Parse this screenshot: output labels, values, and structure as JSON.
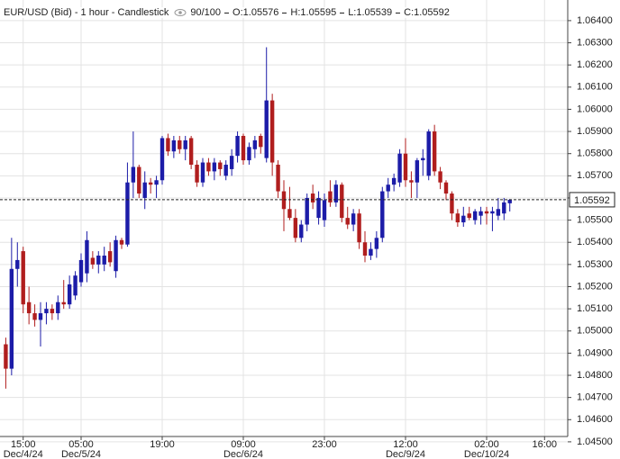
{
  "chart_data": {
    "type": "candlestick",
    "title": "EUR/USD (Bid) - 1 hour - Candlestick",
    "bar_count": "90/100",
    "ohlc_readout": {
      "values": [
        1.05576,
        1.05595,
        1.05539,
        1.05592
      ],
      "value_labels": [
        "O:1.05576",
        "H:1.05595",
        "L:1.05539",
        "C:1.05592"
      ]
    },
    "last_price": 1.05592,
    "up_color": "#1c1ca8",
    "down_color": "#b01e1e",
    "grid": true,
    "ylim": [
      1.04524,
      1.06493
    ],
    "xlim": [
      -1,
      97
    ],
    "yticks": [
      {
        "value": 1.045,
        "label": "1.04500"
      },
      {
        "value": 1.046,
        "label": "1.04600"
      },
      {
        "value": 1.047,
        "label": "1.04700"
      },
      {
        "value": 1.048,
        "label": "1.04800"
      },
      {
        "value": 1.049,
        "label": "1.04900"
      },
      {
        "value": 1.05,
        "label": "1.05000"
      },
      {
        "value": 1.051,
        "label": "1.05100"
      },
      {
        "value": 1.052,
        "label": "1.05200"
      },
      {
        "value": 1.053,
        "label": "1.05300"
      },
      {
        "value": 1.054,
        "label": "1.05400"
      },
      {
        "value": 1.055,
        "label": "1.05500"
      },
      {
        "value": 1.056,
        "label": "1.05600"
      },
      {
        "value": 1.057,
        "label": "1.05700"
      },
      {
        "value": 1.058,
        "label": "1.05800"
      },
      {
        "value": 1.059,
        "label": "1.05900"
      },
      {
        "value": 1.06,
        "label": "1.06000"
      },
      {
        "value": 1.061,
        "label": "1.06100"
      },
      {
        "value": 1.062,
        "label": "1.06200"
      },
      {
        "value": 1.063,
        "label": "1.06300"
      },
      {
        "value": 1.064,
        "label": "1.06400"
      }
    ],
    "xticks": [
      {
        "value": 3,
        "label": "15:00"
      },
      {
        "value": 13,
        "label": "05:00"
      },
      {
        "value": 27,
        "label": "19:00"
      },
      {
        "value": 41,
        "label": "09:00"
      },
      {
        "value": 55,
        "label": "23:00"
      },
      {
        "value": 69,
        "label": "12:00"
      },
      {
        "value": 83,
        "label": "02:00"
      },
      {
        "value": 93,
        "label": "16:00"
      }
    ],
    "xdates": [
      {
        "value": 3,
        "label": "Dec/4/24"
      },
      {
        "value": 13,
        "label": "Dec/5/24"
      },
      {
        "value": 41,
        "label": "Dec/6/24"
      },
      {
        "value": 69,
        "label": "Dec/9/24"
      },
      {
        "value": 83,
        "label": "Dec/10/24"
      }
    ],
    "open": [
      1.0494,
      1.0483,
      1.0528,
      1.0536,
      1.0513,
      1.0508,
      1.0505,
      1.0508,
      1.051,
      1.0508,
      1.0513,
      1.0512,
      1.0516,
      1.0522,
      1.0526,
      1.0533,
      1.053,
      1.053,
      1.0536,
      1.0527,
      1.0541,
      1.0539,
      1.0567,
      1.0574,
      1.056,
      1.0567,
      1.0566,
      1.0568,
      1.0587,
      1.0581,
      1.0586,
      1.0582,
      1.0587,
      1.0575,
      1.0567,
      1.0576,
      1.0572,
      1.0576,
      1.057,
      1.0573,
      1.0579,
      1.0588,
      1.0577,
      1.0582,
      1.0588,
      1.0578,
      1.0604,
      1.0575,
      1.0563,
      1.0555,
      1.0551,
      1.0542,
      1.0548,
      1.0562,
      1.0551,
      1.055,
      1.0563,
      1.0558,
      1.0566,
      1.0551,
      1.0548,
      1.0553,
      1.054,
      1.0534,
      1.0537,
      1.0542,
      1.0563,
      1.0566,
      1.0567,
      1.058,
      1.0568,
      1.0567,
      1.0577,
      1.057,
      1.059,
      1.0572,
      1.0567,
      1.0562,
      1.0553,
      1.0549,
      1.0553,
      1.055,
      1.0552,
      1.0554,
      1.0553,
      1.0552,
      1.0553,
      1.05576
    ],
    "high": [
      1.0497,
      1.0542,
      1.054,
      1.0538,
      1.052,
      1.0512,
      1.0513,
      1.0513,
      1.0512,
      1.0516,
      1.0523,
      1.0525,
      1.0527,
      1.0535,
      1.0545,
      1.0536,
      1.0536,
      1.0538,
      1.054,
      1.0543,
      1.0542,
      1.0576,
      1.059,
      1.0575,
      1.0572,
      1.0569,
      1.057,
      1.0588,
      1.0589,
      1.0588,
      1.0588,
      1.0588,
      1.0588,
      1.0577,
      1.0578,
      1.0578,
      1.0578,
      1.0577,
      1.0577,
      1.0582,
      1.059,
      1.0589,
      1.0585,
      1.0588,
      1.0589,
      1.0628,
      1.0607,
      1.0577,
      1.0568,
      1.0565,
      1.0555,
      1.055,
      1.0562,
      1.0566,
      1.0563,
      1.0562,
      1.0568,
      1.0568,
      1.0567,
      1.0556,
      1.0555,
      1.0555,
      1.0545,
      1.054,
      1.0545,
      1.0565,
      1.0569,
      1.0571,
      1.0582,
      1.0587,
      1.0572,
      1.0578,
      1.0582,
      1.0591,
      1.0593,
      1.0574,
      1.0568,
      1.0563,
      1.0555,
      1.0556,
      1.0556,
      1.0555,
      1.0556,
      1.0556,
      1.0556,
      1.056,
      1.056,
      1.05595
    ],
    "low": [
      1.0474,
      1.048,
      1.052,
      1.0508,
      1.0503,
      1.0502,
      1.0493,
      1.0503,
      1.0505,
      1.0505,
      1.051,
      1.051,
      1.0514,
      1.052,
      1.0522,
      1.0528,
      1.0526,
      1.0527,
      1.0529,
      1.0524,
      1.0537,
      1.0538,
      1.056,
      1.056,
      1.0555,
      1.0562,
      1.056,
      1.0566,
      1.0579,
      1.0578,
      1.058,
      1.0577,
      1.0573,
      1.0565,
      1.0565,
      1.057,
      1.0568,
      1.057,
      1.0568,
      1.057,
      1.0576,
      1.0575,
      1.0575,
      1.0578,
      1.058,
      1.0576,
      1.057,
      1.056,
      1.0545,
      1.055,
      1.054,
      1.054,
      1.0545,
      1.0555,
      1.0548,
      1.0547,
      1.0556,
      1.0556,
      1.0549,
      1.0546,
      1.0545,
      1.0537,
      1.0531,
      1.0532,
      1.0533,
      1.054,
      1.056,
      1.0563,
      1.0565,
      1.0565,
      1.056,
      1.056,
      1.057,
      1.0568,
      1.057,
      1.0564,
      1.0559,
      1.055,
      1.0547,
      1.0547,
      1.055,
      1.0548,
      1.0548,
      1.0548,
      1.0545,
      1.055,
      1.055,
      1.05539
    ],
    "close": [
      1.0483,
      1.0528,
      1.0532,
      1.0512,
      1.0508,
      1.0505,
      1.0508,
      1.051,
      1.0508,
      1.0513,
      1.0512,
      1.0521,
      1.0525,
      1.0532,
      1.0541,
      1.053,
      1.0534,
      1.0534,
      1.0531,
      1.0541,
      1.0539,
      1.0567,
      1.0574,
      1.0562,
      1.0567,
      1.0566,
      1.0568,
      1.0587,
      1.0581,
      1.0586,
      1.0582,
      1.0586,
      1.0575,
      1.0567,
      1.0576,
      1.0572,
      1.0576,
      1.0573,
      1.0575,
      1.0579,
      1.0588,
      1.0577,
      1.0583,
      1.0586,
      1.0583,
      1.0604,
      1.0576,
      1.0563,
      1.0555,
      1.0551,
      1.0542,
      1.0548,
      1.056,
      1.0558,
      1.056,
      1.0559,
      1.0558,
      1.0566,
      1.0551,
      1.0548,
      1.0553,
      1.054,
      1.0534,
      1.0537,
      1.0542,
      1.0563,
      1.0566,
      1.0569,
      1.058,
      1.0568,
      1.0567,
      1.0577,
      1.0578,
      1.059,
      1.0572,
      1.0567,
      1.0562,
      1.0553,
      1.0549,
      1.0552,
      1.0551,
      1.0554,
      1.0554,
      1.0553,
      1.0554,
      1.0555,
      1.0558,
      1.05592
    ]
  }
}
